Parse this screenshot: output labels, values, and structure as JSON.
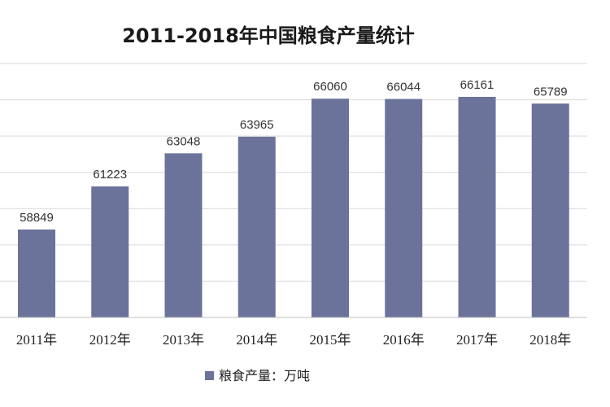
{
  "chart_data": {
    "type": "bar",
    "title": "2011-2018年中国粮食产量统计",
    "categories": [
      "2011年",
      "2012年",
      "2013年",
      "2014年",
      "2015年",
      "2016年",
      "2017年",
      "2018年"
    ],
    "series": [
      {
        "name": "粮食产量：万吨",
        "values": [
          58849,
          61223,
          63048,
          63965,
          66060,
          66044,
          66161,
          65789
        ],
        "color": "#6b739a"
      }
    ],
    "data_labels": [
      "58849",
      "61223",
      "63048",
      "63965",
      "66060",
      "66044",
      "66161",
      "65789"
    ],
    "ylim": [
      54000,
      68000
    ],
    "y_gridline_step": 2000,
    "grid": true,
    "legend_position": "bottom"
  }
}
